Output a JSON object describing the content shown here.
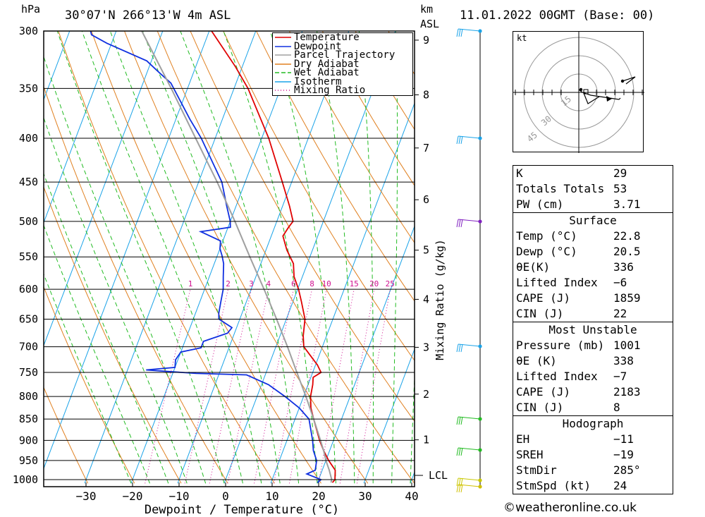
{
  "header": {
    "pressure_unit": "hPa",
    "location": "30°07'N 266°13'W 4m ASL",
    "km_label": "km",
    "asl_label": "ASL",
    "datetime": "11.01.2022 00GMT (Base: 00)"
  },
  "chart_data": {
    "type": "line",
    "title": "",
    "xlabel": "Dewpoint / Temperature (°C)",
    "ylabel": "hPa",
    "y2label": "Mixing Ratio (g/kg)",
    "x_ticks": [
      -30,
      -20,
      -10,
      0,
      10,
      20,
      30,
      40
    ],
    "x_tick_labels": [
      "−30",
      "−20",
      "−10",
      "0",
      "10",
      "20",
      "30",
      "40"
    ],
    "p_levels": [
      300,
      350,
      400,
      450,
      500,
      550,
      600,
      650,
      700,
      750,
      800,
      850,
      900,
      950,
      1000
    ],
    "km_ticks": [
      1,
      2,
      3,
      4,
      5,
      6,
      7,
      8,
      9
    ],
    "lcl_label": "LCL",
    "mixing_ratio_labels": [
      "1",
      "2",
      "3",
      "4",
      "6",
      "8",
      "10",
      "15",
      "20",
      "25"
    ],
    "legend": [
      "Temperature",
      "Dewpoint",
      "Parcel Trajectory",
      "Dry Adiabat",
      "Wet Adiabat",
      "Isotherm",
      "Mixing Ratio"
    ],
    "legend_position": "top-right",
    "series": [
      {
        "name": "Temperature",
        "color": "#e00000",
        "points": [
          [
            1008,
            23.2
          ],
          [
            1000,
            23.5
          ],
          [
            975,
            22.8
          ],
          [
            950,
            20.6
          ],
          [
            925,
            18.7
          ],
          [
            900,
            17.0
          ],
          [
            850,
            14.0
          ],
          [
            825,
            12.5
          ],
          [
            800,
            11.5
          ],
          [
            775,
            11.0
          ],
          [
            760,
            10.5
          ],
          [
            750,
            11.8
          ],
          [
            735,
            10.4
          ],
          [
            700,
            6.0
          ],
          [
            680,
            5.0
          ],
          [
            650,
            4.0
          ],
          [
            620,
            1.8
          ],
          [
            600,
            0.2
          ],
          [
            580,
            -1.8
          ],
          [
            560,
            -3.0
          ],
          [
            540,
            -5.5
          ],
          [
            520,
            -7.5
          ],
          [
            508,
            -7.0
          ],
          [
            500,
            -6.5
          ],
          [
            480,
            -8.5
          ],
          [
            450,
            -12.0
          ],
          [
            400,
            -18.5
          ],
          [
            350,
            -27.0
          ],
          [
            330,
            -31.5
          ],
          [
            300,
            -39.5
          ]
        ]
      },
      {
        "name": "Dewpoint",
        "color": "#1030e0",
        "points": [
          [
            1008,
            20.0
          ],
          [
            1000,
            20.5
          ],
          [
            985,
            17.0
          ],
          [
            975,
            18.5
          ],
          [
            950,
            18.0
          ],
          [
            925,
            16.5
          ],
          [
            900,
            15.5
          ],
          [
            850,
            13.0
          ],
          [
            825,
            10.0
          ],
          [
            800,
            6.0
          ],
          [
            775,
            1.5
          ],
          [
            755,
            -4.0
          ],
          [
            752,
            -15.0
          ],
          [
            745,
            -26.0
          ],
          [
            740,
            -20.0
          ],
          [
            725,
            -20.5
          ],
          [
            710,
            -20.0
          ],
          [
            702,
            -16.0
          ],
          [
            690,
            -16.0
          ],
          [
            675,
            -11.5
          ],
          [
            665,
            -11.0
          ],
          [
            650,
            -14.5
          ],
          [
            640,
            -15.0
          ],
          [
            620,
            -15.5
          ],
          [
            600,
            -16.0
          ],
          [
            580,
            -17.0
          ],
          [
            560,
            -18.0
          ],
          [
            548,
            -19.0
          ],
          [
            538,
            -20.0
          ],
          [
            527,
            -20.5
          ],
          [
            514,
            -25.5
          ],
          [
            508,
            -19.5
          ],
          [
            500,
            -20.0
          ],
          [
            480,
            -22.0
          ],
          [
            450,
            -25.0
          ],
          [
            400,
            -33.0
          ],
          [
            380,
            -37.0
          ],
          [
            345,
            -44.0
          ],
          [
            335,
            -47.5
          ],
          [
            325,
            -51.0
          ],
          [
            310,
            -61.0
          ],
          [
            303,
            -65.0
          ],
          [
            300,
            -65.5
          ]
        ]
      },
      {
        "name": "Parcel Trajectory",
        "color": "#a0a0a0",
        "points": [
          [
            1008,
            22.9
          ],
          [
            1000,
            22.8
          ],
          [
            975,
            21.5
          ],
          [
            950,
            20.0
          ],
          [
            925,
            18.7
          ],
          [
            900,
            17.2
          ],
          [
            850,
            14.0
          ],
          [
            800,
            10.5
          ],
          [
            750,
            6.6
          ],
          [
            700,
            2.5
          ],
          [
            650,
            -2.1
          ],
          [
            600,
            -7.2
          ],
          [
            550,
            -12.9
          ],
          [
            500,
            -19.0
          ],
          [
            450,
            -26.0
          ],
          [
            400,
            -34.2
          ],
          [
            350,
            -43.5
          ],
          [
            300,
            -54.5
          ]
        ]
      }
    ]
  },
  "hodograph": {
    "unit_label": "kt",
    "ring_labels": [
      "15",
      "30",
      "45"
    ]
  },
  "indices": {
    "k_label": "K",
    "k_value": "29",
    "tt_label": "Totals Totals",
    "tt_value": "53",
    "pw_label": "PW (cm)",
    "pw_value": "3.71"
  },
  "surface": {
    "title": "Surface",
    "temp_label": "Temp (°C)",
    "temp_value": "22.8",
    "dewp_label": "Dewp (°C)",
    "dewp_value": "20.5",
    "theta_label": "θE(K)",
    "theta_value": "336",
    "li_label": "Lifted Index",
    "li_value": "−6",
    "cape_label": "CAPE (J)",
    "cape_value": "1859",
    "cin_label": "CIN (J)",
    "cin_value": "22"
  },
  "most_unstable": {
    "title": "Most Unstable",
    "pressure_label": "Pressure (mb)",
    "pressure_value": "1001",
    "theta_label": "θE (K)",
    "theta_value": "338",
    "li_label": "Lifted Index",
    "li_value": "−7",
    "cape_label": "CAPE (J)",
    "cape_value": "2183",
    "cin_label": "CIN (J)",
    "cin_value": "8"
  },
  "hodograph_params": {
    "title": "Hodograph",
    "eh_label": "EH",
    "eh_value": "−11",
    "sreh_label": "SREH",
    "sreh_value": "−19",
    "stmdir_label": "StmDir",
    "stmdir_value": "285°",
    "stmspd_label": "StmSpd (kt)",
    "stmspd_value": "24"
  },
  "footer": "©weatheronline.co.uk"
}
